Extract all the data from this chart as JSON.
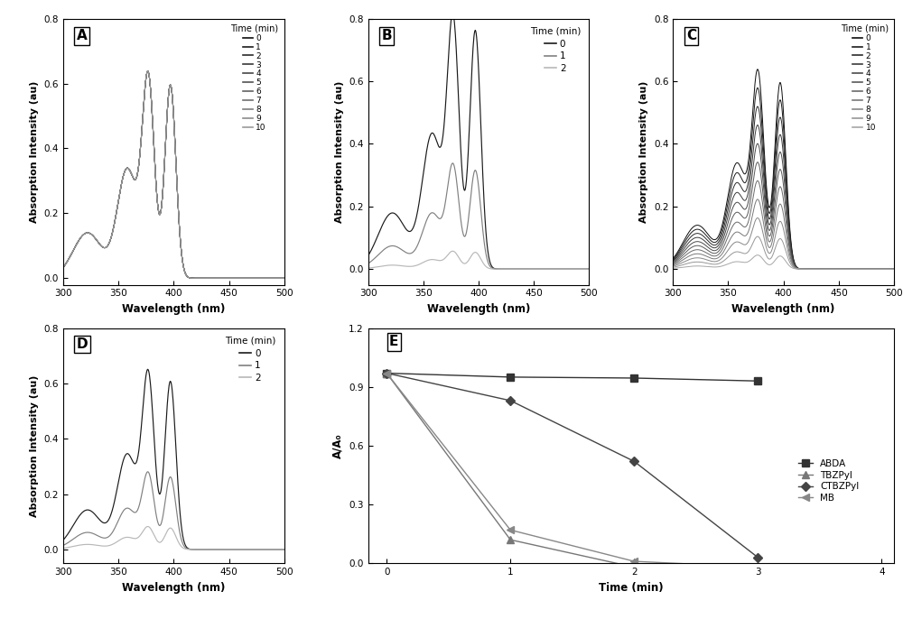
{
  "xlabel": "Wavelength (nm)",
  "ylabel_abs": "Absorption Intensity (au)",
  "ylabel_E": "A/A₀",
  "xlim_abs": [
    300,
    500
  ],
  "ylim_abs_A": [
    -0.02,
    0.8
  ],
  "ylim_abs_BCD": [
    -0.05,
    0.8
  ],
  "ylim_E": [
    0.0,
    1.2
  ],
  "xticks_abs": [
    300,
    350,
    400,
    450,
    500
  ],
  "yticks_abs": [
    0.0,
    0.2,
    0.4,
    0.6,
    0.8
  ],
  "yticks_E": [
    0.0,
    0.3,
    0.6,
    0.9,
    1.2
  ],
  "legend_times_11": [
    "0",
    "1",
    "2",
    "3",
    "4",
    "5",
    "6",
    "7",
    "8",
    "9",
    "10"
  ],
  "legend_times_3": [
    "0",
    "1",
    "2"
  ],
  "E_times": [
    0,
    1,
    2,
    3
  ],
  "ABDA_vals": [
    0.97,
    0.95,
    0.945,
    0.93
  ],
  "TBZPyl_vals": [
    0.97,
    0.12,
    -0.02,
    -0.04
  ],
  "CTBZPyl_vals": [
    0.97,
    0.83,
    0.52,
    0.03
  ],
  "MB_vals": [
    0.97,
    0.17,
    0.01,
    -0.02
  ],
  "E_legend_labels": [
    "ABDA",
    "TBZPyl",
    "CTBZPyl",
    "MB"
  ],
  "E_markers": [
    "s",
    "^",
    "D",
    "<"
  ],
  "peak1_wl": 358,
  "peak1_sigma": 9,
  "peak1_amp": 0.335,
  "peak2_wl": 377,
  "peak2_sigma": 5.5,
  "peak2_amp": 0.6,
  "peak3_wl": 397,
  "peak3_sigma": 5.0,
  "peak3_amp": 0.595,
  "shoulder_wl": 322,
  "shoulder_sigma": 13,
  "shoulder_amp": 0.14
}
